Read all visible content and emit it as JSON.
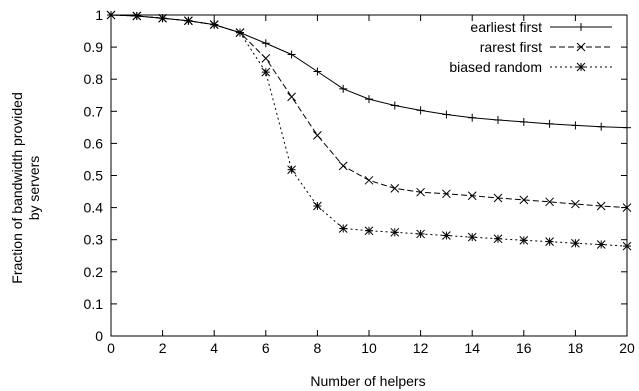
{
  "chart_data": {
    "type": "line",
    "xlabel": "Number of helpers",
    "ylabel_lines": [
      "Fraction of bandwidth provided",
      "by servers"
    ],
    "xlim": [
      0,
      20
    ],
    "ylim": [
      0,
      1
    ],
    "xticks": [
      0,
      2,
      4,
      6,
      8,
      10,
      12,
      14,
      16,
      18,
      20
    ],
    "yticks": [
      0,
      0.1,
      0.2,
      0.3,
      0.4,
      0.5,
      0.6,
      0.7,
      0.8,
      0.9,
      1
    ],
    "xtick_labels": [
      "0",
      "2",
      "4",
      "6",
      "8",
      "10",
      "12",
      "14",
      "16",
      "18",
      "20"
    ],
    "ytick_labels": [
      "0",
      "0.1",
      "0.2",
      "0.3",
      "0.4",
      "0.5",
      "0.6",
      "0.7",
      "0.8",
      "0.9",
      "1"
    ],
    "legend_position": "top-right",
    "grid": false,
    "x": [
      0,
      1,
      2,
      3,
      4,
      5,
      6,
      7,
      8,
      9,
      10,
      11,
      12,
      13,
      14,
      15,
      16,
      17,
      18,
      19,
      20
    ],
    "series": [
      {
        "name": "earliest first",
        "marker": "plus",
        "line": "solid",
        "values": [
          1.0,
          0.997,
          0.99,
          0.982,
          0.97,
          0.945,
          0.912,
          0.877,
          0.824,
          0.77,
          0.738,
          0.718,
          0.703,
          0.69,
          0.68,
          0.673,
          0.667,
          0.661,
          0.656,
          0.652,
          0.649
        ]
      },
      {
        "name": "rarest first",
        "marker": "cross",
        "line": "dashed",
        "values": [
          1.0,
          0.997,
          0.99,
          0.982,
          0.97,
          0.945,
          0.865,
          0.745,
          0.625,
          0.53,
          0.485,
          0.46,
          0.448,
          0.443,
          0.437,
          0.43,
          0.424,
          0.418,
          0.411,
          0.405,
          0.4
        ]
      },
      {
        "name": "biased random",
        "marker": "star",
        "line": "dotted",
        "values": [
          1.0,
          0.997,
          0.99,
          0.982,
          0.97,
          0.945,
          0.822,
          0.518,
          0.405,
          0.335,
          0.328,
          0.323,
          0.318,
          0.313,
          0.308,
          0.303,
          0.298,
          0.294,
          0.289,
          0.285,
          0.28
        ]
      }
    ]
  }
}
